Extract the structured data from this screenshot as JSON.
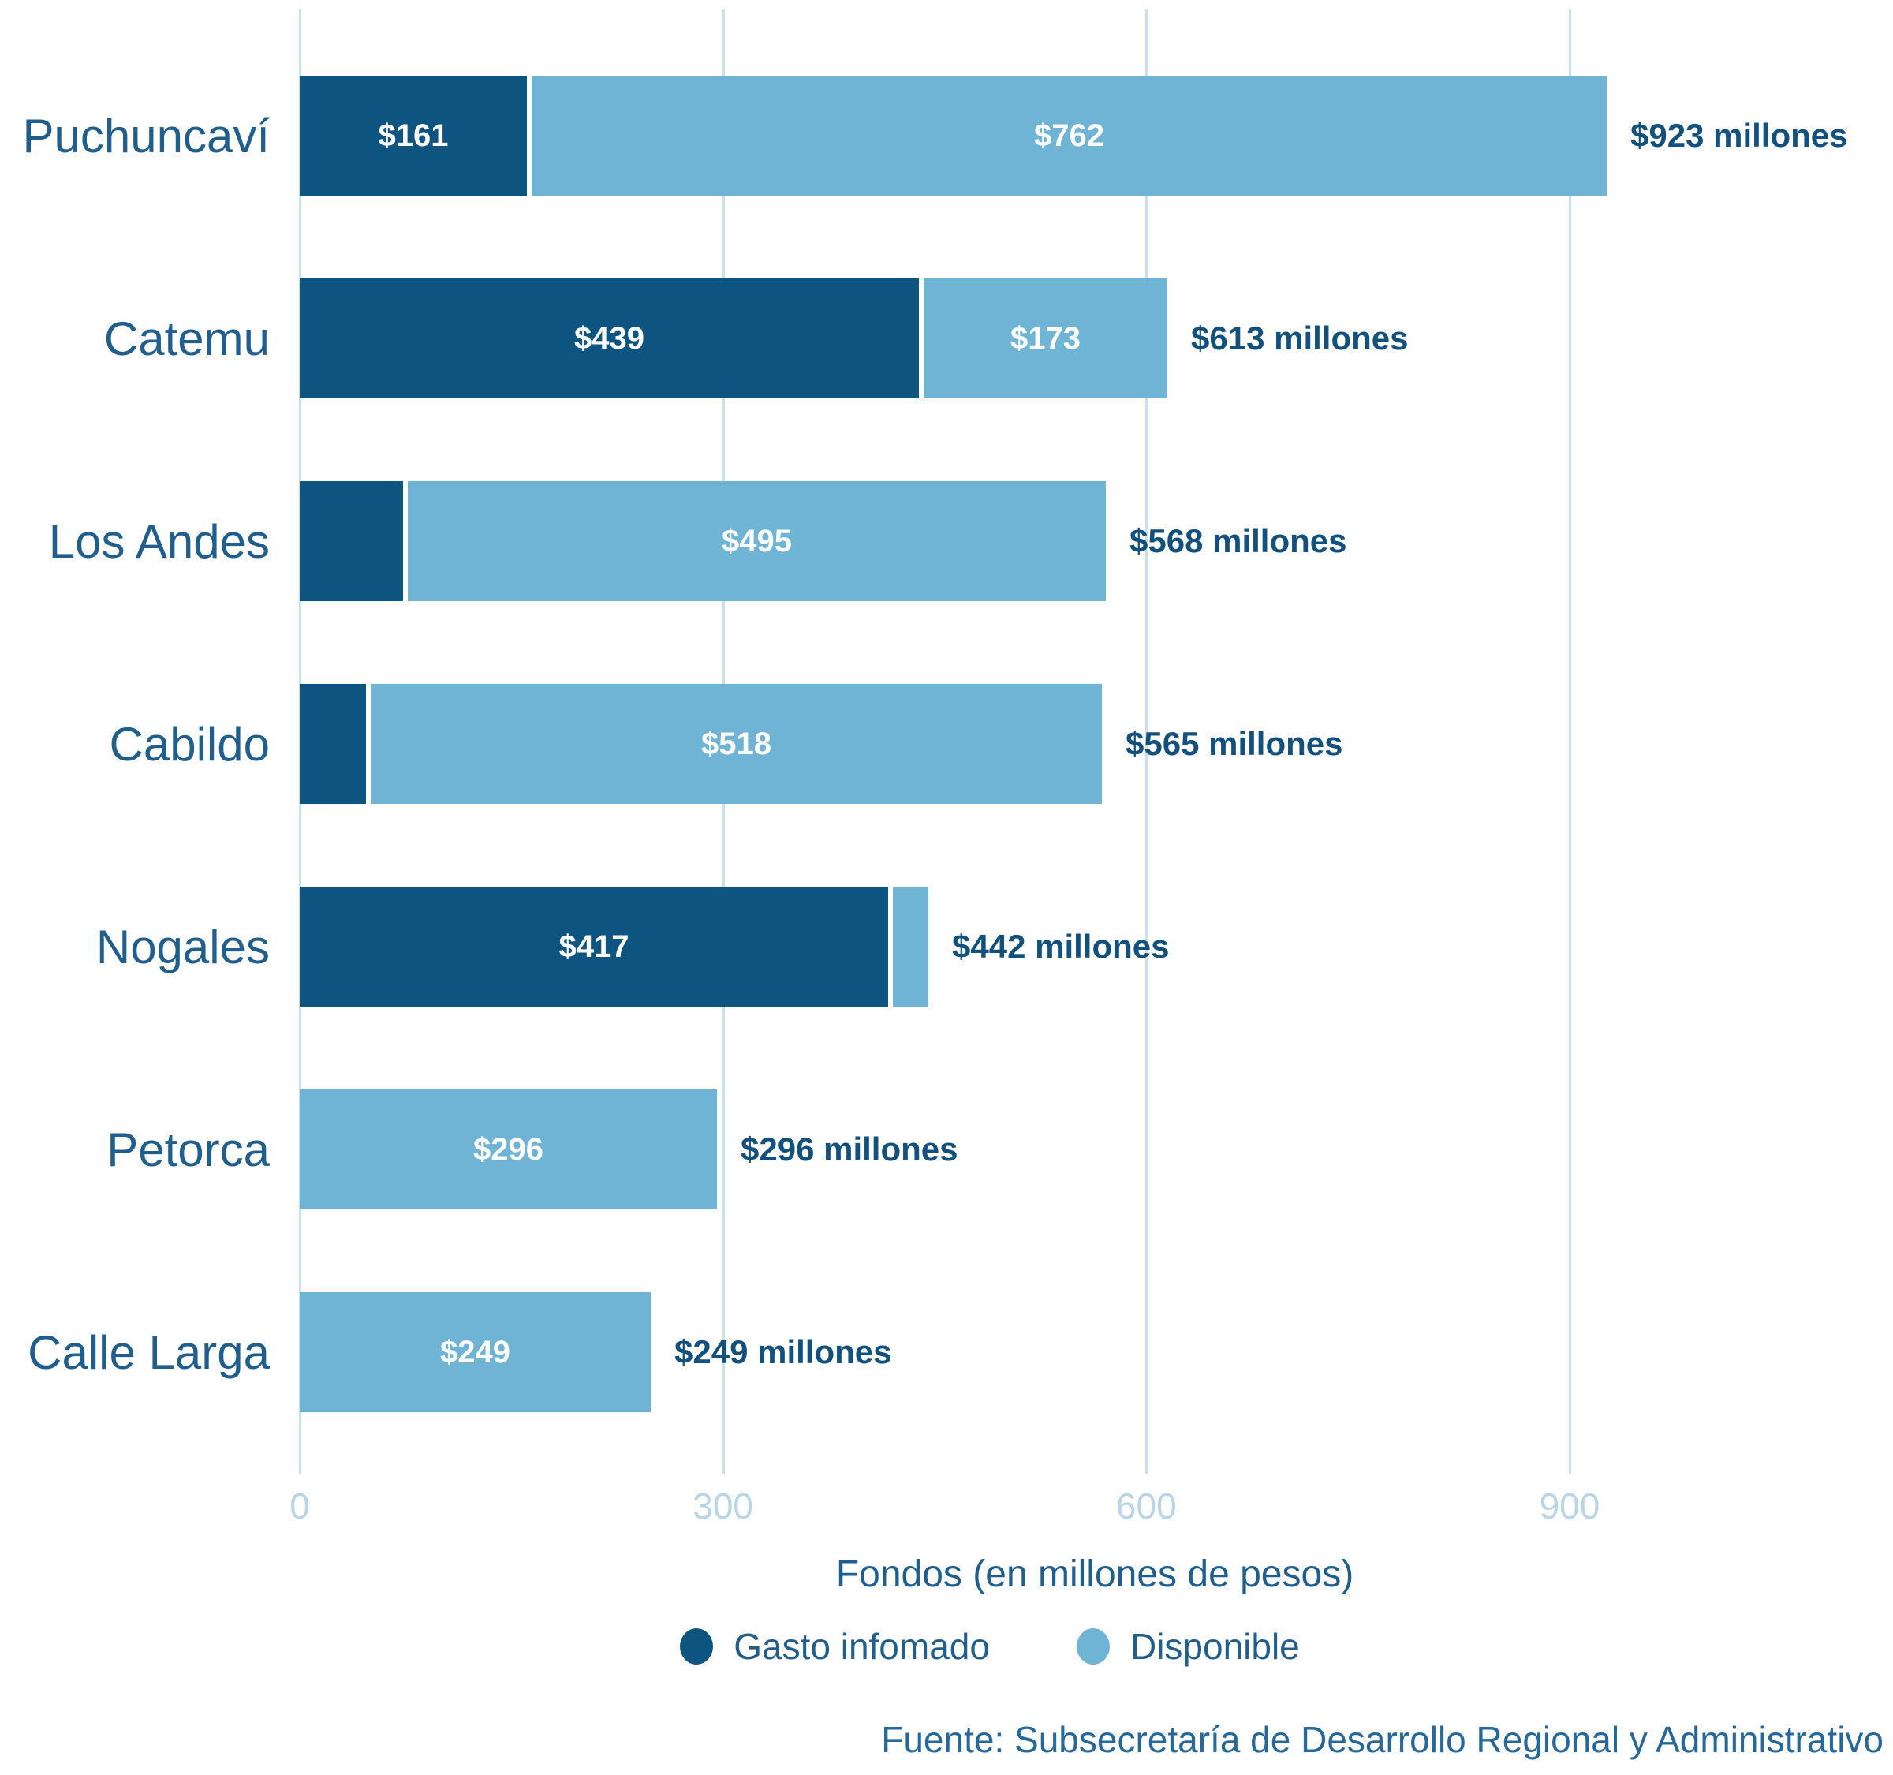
{
  "colors": {
    "gasto": "#0E5480",
    "disponible": "#6FB3D5",
    "gridline": "#C9E0EE",
    "tick_text": "#B9D5E7",
    "category_text": "#1F5E8D",
    "total_text": "#12507E",
    "axis_title_text": "#1F5E8D",
    "legend_text": "#1F5E8D",
    "source_text": "#26689A",
    "bar_value_text": "#FFFFFF"
  },
  "chart_data": {
    "type": "bar",
    "orientation": "horizontal",
    "stacked": true,
    "categories": [
      "Puchuncaví",
      "Catemu",
      "Los Andes",
      "Cabildo",
      "Nogales",
      "Petorca",
      "Calle Larga"
    ],
    "series": [
      {
        "name": "Gasto infomado",
        "color_key": "gasto",
        "values": [
          161,
          439,
          73,
          47,
          417,
          0,
          0
        ],
        "labels": [
          "$161",
          "$439",
          "",
          "",
          "$417",
          "",
          ""
        ]
      },
      {
        "name": "Disponible",
        "color_key": "disponible",
        "values": [
          762,
          173,
          495,
          518,
          25,
          296,
          249
        ],
        "labels": [
          "$762",
          "$173",
          "$495",
          "$518",
          "",
          "$296",
          "$249"
        ]
      }
    ],
    "totals": [
      923,
      613,
      568,
      565,
      442,
      296,
      249
    ],
    "total_labels": [
      "$923 millones",
      "$613 millones",
      "$568 millones",
      "$565 millones",
      "$442 millones",
      "$296 millones",
      "$249 millones"
    ],
    "xlabel": "Fondos (en millones de pesos)",
    "x_ticks": [
      0,
      300,
      600,
      900
    ],
    "xlim": [
      0,
      1127
    ],
    "grid": true,
    "legend_position": "bottom",
    "legend": [
      {
        "label": "Gasto infomado",
        "color_key": "gasto"
      },
      {
        "label": "Disponible",
        "color_key": "disponible"
      }
    ],
    "source": "Fuente: Subsecretaría de Desarrollo Regional y Administrativo"
  }
}
